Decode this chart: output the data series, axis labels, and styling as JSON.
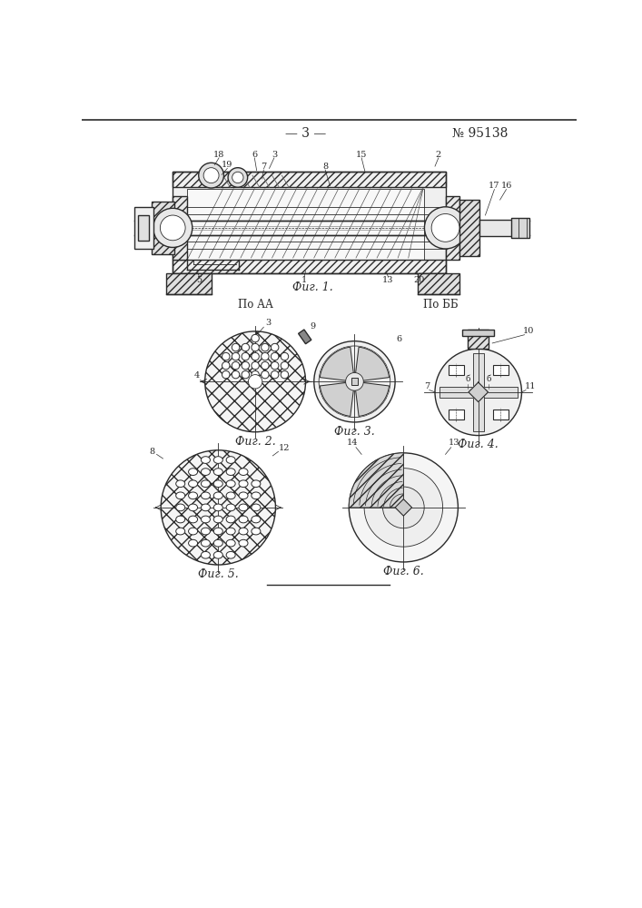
{
  "page_number": "— 3 —",
  "patent_number": "№ 95138",
  "fig1_caption": "Фиг. 1.",
  "fig2_caption": "Фиг. 2.",
  "fig3_caption": "Фиг. 3.",
  "fig4_caption": "Фиг. 4.",
  "fig5_caption": "Фиг. 5.",
  "fig6_caption": "Фиг. 6.",
  "section_aa": "По АА",
  "section_bb": "По ББ",
  "bg_color": "#ffffff",
  "line_color": "#2a2a2a"
}
